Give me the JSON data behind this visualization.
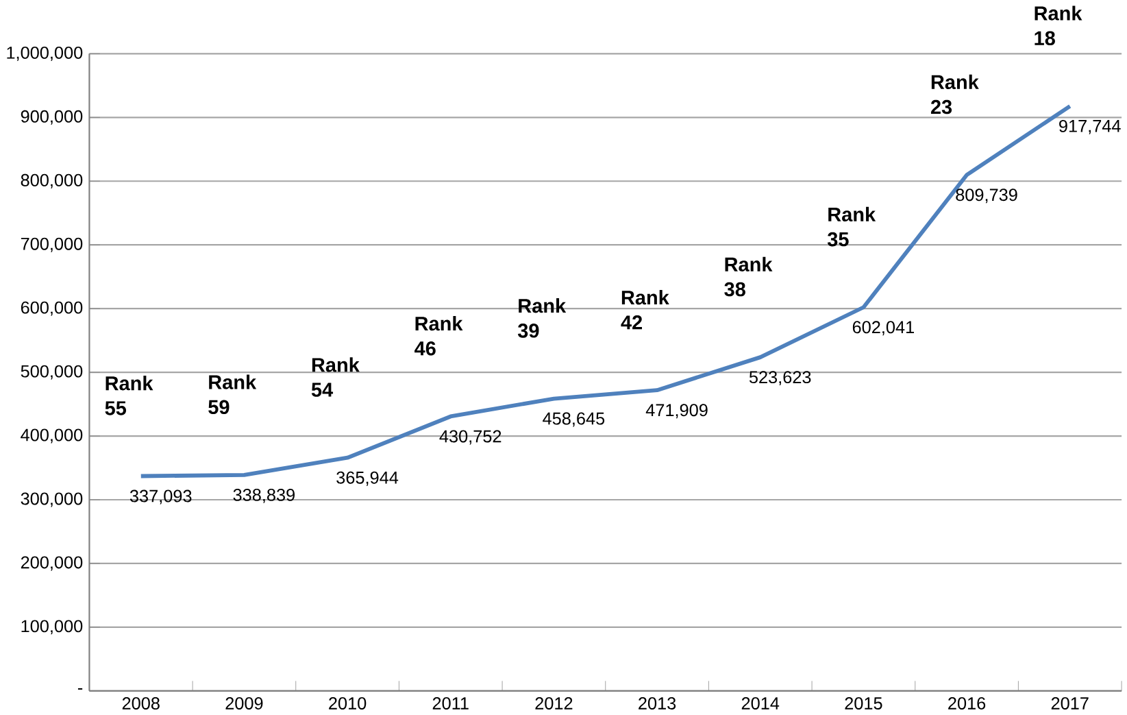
{
  "chart_data": {
    "type": "line",
    "categories": [
      "2008",
      "2009",
      "2010",
      "2011",
      "2012",
      "2013",
      "2014",
      "2015",
      "2016",
      "2017"
    ],
    "series": [
      {
        "color": "#4f81bd",
        "values": [
          337093,
          338839,
          365944,
          430752,
          458645,
          471909,
          523623,
          602041,
          809739,
          917744
        ],
        "value_labels": [
          "337,093",
          "338,839",
          "365,944",
          "430,752",
          "458,645",
          "471,909",
          "523,623",
          "602,041",
          "809,739",
          "917,744"
        ]
      }
    ],
    "ylim": [
      0,
      1000000
    ],
    "yticks": [
      {
        "value": 0,
        "label": "-"
      },
      {
        "value": 100000,
        "label": "100,000"
      },
      {
        "value": 200000,
        "label": "200,000"
      },
      {
        "value": 300000,
        "label": "300,000"
      },
      {
        "value": 400000,
        "label": "400,000"
      },
      {
        "value": 500000,
        "label": "500,000"
      },
      {
        "value": 600000,
        "label": "600,000"
      },
      {
        "value": 700000,
        "label": "700,000"
      },
      {
        "value": 800000,
        "label": "800,000"
      },
      {
        "value": 900000,
        "label": "900,000"
      },
      {
        "value": 1000000,
        "label": "1,000,000"
      }
    ],
    "grid": "y",
    "marker": "none",
    "line_style": "solid",
    "annotations": [
      "Rank 55",
      "Rank 59",
      "Rank 54",
      "Rank 46",
      "Rank 39",
      "Rank 42",
      "Rank 38",
      "Rank 35",
      "Rank 23",
      "Rank 18"
    ]
  }
}
